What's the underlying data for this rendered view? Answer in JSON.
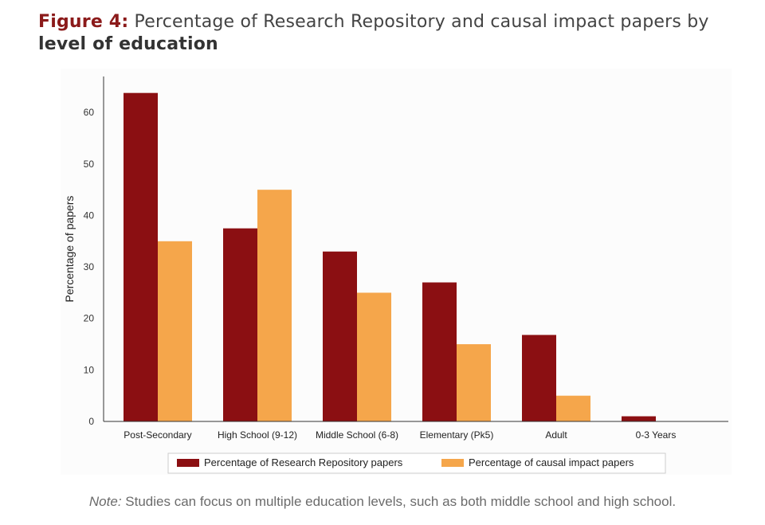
{
  "figure": {
    "label": "Figure 4:",
    "title_plain": " Percentage of Research Repository and causal impact papers by ",
    "title_bold": "level of education"
  },
  "chart_data": {
    "type": "bar",
    "ylabel": "Percentage of papers",
    "xlabel": "",
    "ylim": [
      0,
      67
    ],
    "yticks": [
      0,
      10,
      20,
      30,
      40,
      50,
      60
    ],
    "grid": false,
    "legend_position": "bottom",
    "categories": [
      "Post-Secondary",
      "High School (9-12)",
      "Middle School (6-8)",
      "Elementary (Pk5)",
      "Adult",
      "0-3 Years"
    ],
    "series": [
      {
        "name": "Percentage of Research Repository papers",
        "color": "#8b0f12",
        "values": [
          63.8,
          37.5,
          33,
          27,
          16.8,
          1
        ]
      },
      {
        "name": "Percentage of causal impact papers",
        "color": "#f5a64b",
        "values": [
          35,
          45,
          25,
          15,
          5,
          0
        ]
      }
    ]
  },
  "note": {
    "label": "Note:",
    "text": " Studies can focus on multiple education levels, such as both middle school and high school."
  }
}
